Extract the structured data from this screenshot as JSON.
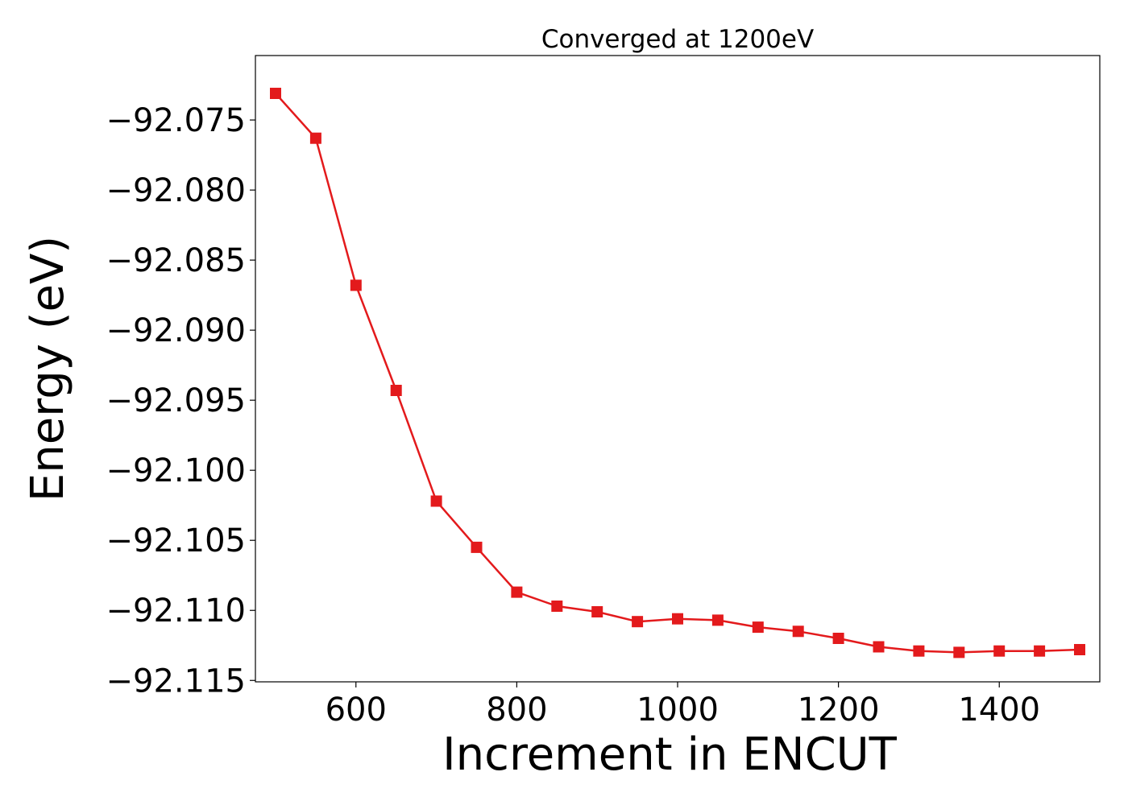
{
  "chart_data": {
    "type": "line",
    "title": "Converged at 1200eV",
    "xlabel": "Increment in ENCUT",
    "ylabel": "Energy (eV)",
    "xlim": [
      475,
      1525
    ],
    "ylim": [
      -92.1151,
      -92.0704
    ],
    "xticks": [
      600,
      800,
      1000,
      1200,
      1400
    ],
    "yticks": [
      -92.075,
      -92.08,
      -92.085,
      -92.09,
      -92.095,
      -92.1,
      -92.105,
      -92.11,
      -92.115
    ],
    "grid": false,
    "legend": "none",
    "series": [
      {
        "color": "#e31a1c",
        "marker": "square",
        "points": [
          {
            "x": 500,
            "y": -92.0731
          },
          {
            "x": 550,
            "y": -92.0763
          },
          {
            "x": 600,
            "y": -92.0868
          },
          {
            "x": 650,
            "y": -92.0943
          },
          {
            "x": 700,
            "y": -92.1022
          },
          {
            "x": 750,
            "y": -92.1055
          },
          {
            "x": 800,
            "y": -92.1087
          },
          {
            "x": 850,
            "y": -92.1097
          },
          {
            "x": 900,
            "y": -92.1101
          },
          {
            "x": 950,
            "y": -92.1108
          },
          {
            "x": 1000,
            "y": -92.1106
          },
          {
            "x": 1050,
            "y": -92.1107
          },
          {
            "x": 1100,
            "y": -92.1112
          },
          {
            "x": 1150,
            "y": -92.1115
          },
          {
            "x": 1200,
            "y": -92.112
          },
          {
            "x": 1250,
            "y": -92.1126
          },
          {
            "x": 1300,
            "y": -92.1129
          },
          {
            "x": 1350,
            "y": -92.113
          },
          {
            "x": 1400,
            "y": -92.1129
          },
          {
            "x": 1450,
            "y": -92.1129
          },
          {
            "x": 1500,
            "y": -92.1128
          }
        ]
      }
    ]
  }
}
